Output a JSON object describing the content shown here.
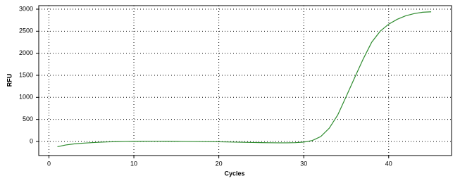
{
  "chart_data": {
    "type": "line",
    "xlabel": "Cycles",
    "ylabel": "RFU",
    "x": [
      1,
      2,
      3,
      4,
      5,
      6,
      7,
      8,
      9,
      10,
      11,
      12,
      13,
      14,
      15,
      16,
      17,
      18,
      19,
      20,
      21,
      22,
      23,
      24,
      25,
      26,
      27,
      28,
      29,
      30,
      31,
      32,
      33,
      34,
      35,
      36,
      37,
      38,
      39,
      40,
      41,
      42,
      43,
      44,
      45
    ],
    "series": [
      {
        "color": "#2e8b2e",
        "values": [
          -120,
          -80,
          -55,
          -40,
          -28,
          -18,
          -10,
          -5,
          0,
          3,
          5,
          6,
          6,
          5,
          3,
          0,
          -2,
          -4,
          -6,
          -8,
          -12,
          -16,
          -20,
          -24,
          -27,
          -30,
          -32,
          -32,
          -28,
          -15,
          20,
          110,
          300,
          600,
          1020,
          1450,
          1870,
          2250,
          2500,
          2660,
          2770,
          2850,
          2900,
          2930,
          2940
        ]
      }
    ],
    "xlim": [
      -1.2,
      47.4
    ],
    "ylim": [
      -320,
      3080
    ],
    "xticks": [
      0,
      10,
      20,
      30,
      40
    ],
    "yticks": [
      0,
      500,
      1000,
      1500,
      2000,
      2500,
      3000
    ],
    "grid": true
  }
}
